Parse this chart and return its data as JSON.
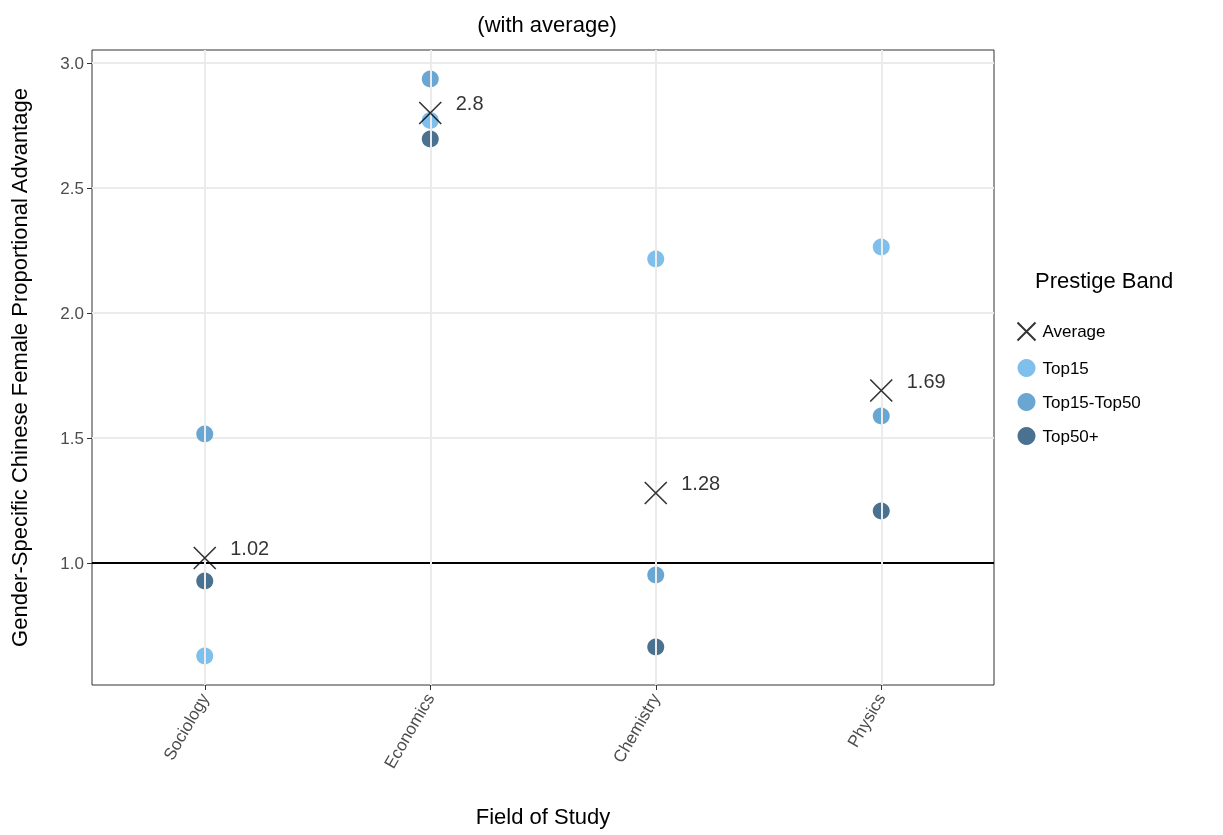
{
  "chart_data": {
    "type": "scatter",
    "title": "(with average)",
    "xlabel": "Field of Study",
    "ylabel": "Gender-Specific Chinese Female Proportional Advantage",
    "legend_title": "Prestige Band",
    "categories": [
      "Sociology",
      "Economics",
      "Chemistry",
      "Physics"
    ],
    "series": [
      {
        "name": "Top15",
        "color": "#7fbfeb",
        "marker": "circle",
        "values": [
          0.628,
          2.77,
          2.216,
          2.264
        ]
      },
      {
        "name": "Top15-Top50",
        "color": "#6aa6d2",
        "marker": "circle",
        "values": [
          1.516,
          2.936,
          0.952,
          1.588
        ]
      },
      {
        "name": "Top50+",
        "color": "#4a7190",
        "marker": "circle",
        "values": [
          0.928,
          2.696,
          0.664,
          1.208
        ]
      },
      {
        "name": "Average",
        "color": "#000000",
        "marker": "cross",
        "values": [
          1.02,
          2.8,
          1.28,
          1.69
        ],
        "value_labels": [
          "1.02",
          "2.8",
          "1.28",
          "1.69"
        ]
      }
    ],
    "ylim": [
      0.512,
      3.052
    ],
    "yticks": [
      {
        "value": 1,
        "label": "1.0"
      },
      {
        "value": 1.5,
        "label": "1.5"
      },
      {
        "value": 2,
        "label": "2.0"
      },
      {
        "value": 2.5,
        "label": "2.5"
      },
      {
        "value": 3,
        "label": "3.0"
      }
    ],
    "ref_lines": [
      {
        "axis": "y",
        "value": 1,
        "color": "#000000"
      }
    ],
    "grid": true,
    "legend": "right"
  }
}
